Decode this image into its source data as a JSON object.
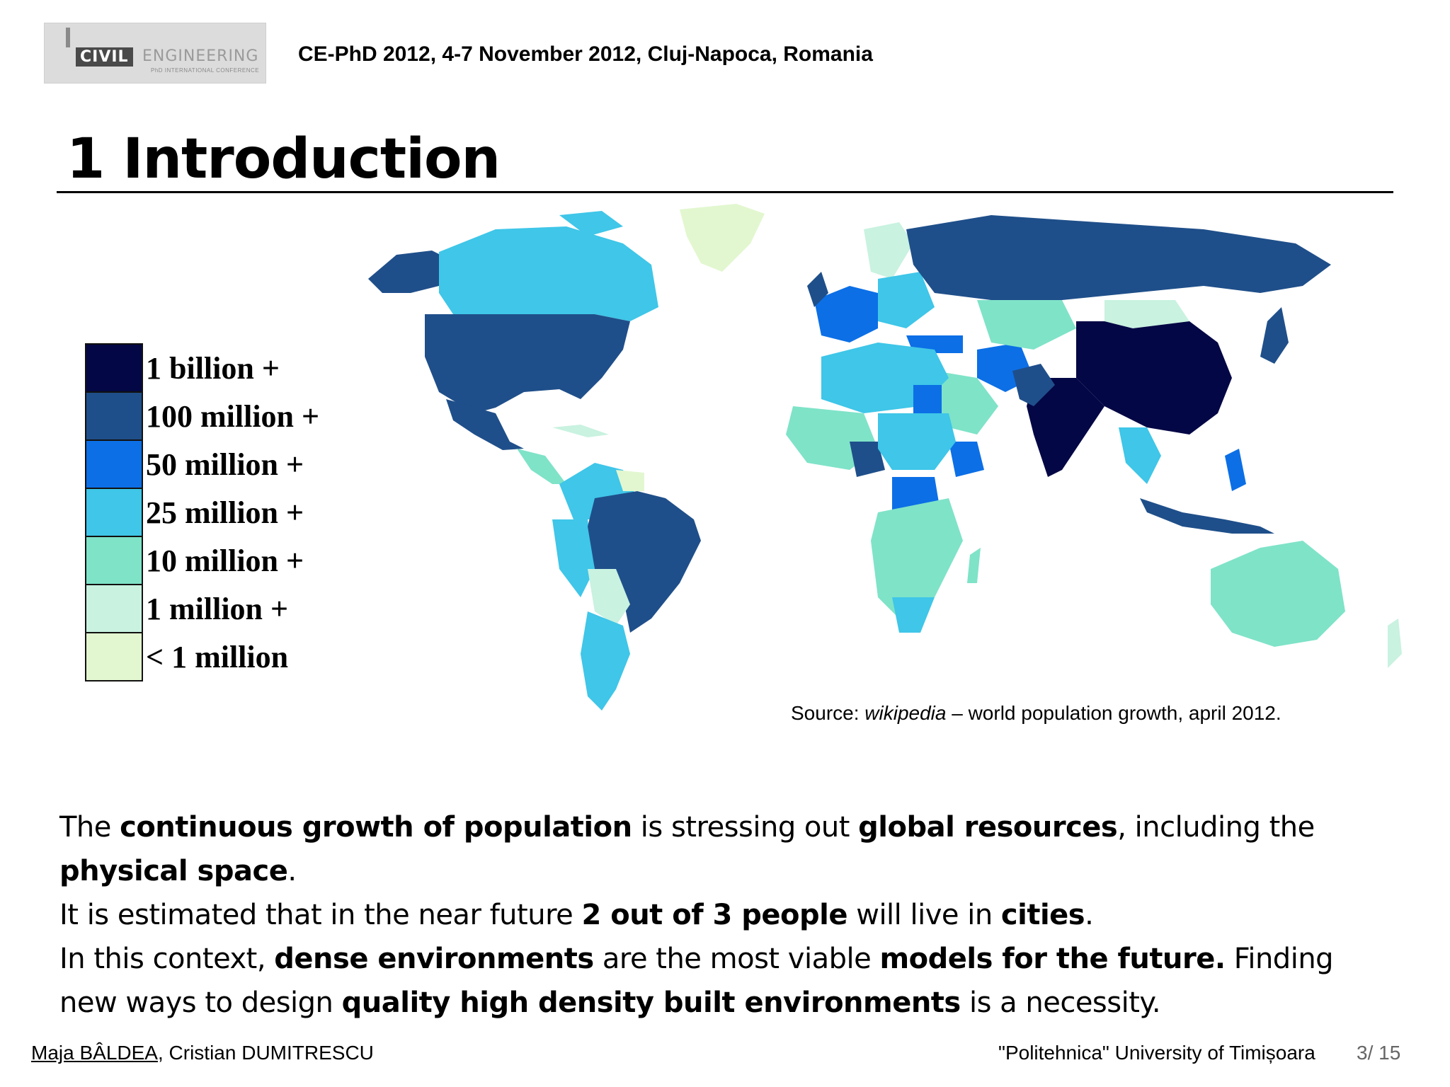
{
  "header": {
    "logo_text_civil": "CIVIL",
    "logo_text_engineering": "ENGINEERING",
    "logo_subtext": "PhD INTERNATIONAL CONFERENCE",
    "conference": "CE-PhD 2012, 4-7 November 2012, Cluj-Napoca, Romania"
  },
  "slide": {
    "title": "1 Introduction"
  },
  "legend": [
    {
      "label": "1 billion +",
      "color": "#040745"
    },
    {
      "label": "100 million +",
      "color": "#1f4f8a"
    },
    {
      "label": "50 million +",
      "color": "#0c6fe6"
    },
    {
      "label": "25 million +",
      "color": "#3fc6e8"
    },
    {
      "label": "10 million +",
      "color": "#7fe3c8"
    },
    {
      "label": "1 million +",
      "color": "#c9f2e0"
    },
    {
      "label": "< 1 million",
      "color": "#e2f7cf"
    }
  ],
  "source": {
    "prefix": "Source: ",
    "site": "wikipedia",
    "rest": " – world population growth, april 2012."
  },
  "paragraph": {
    "s1a": "The ",
    "s1b": "continuous growth of population",
    "s1c": " is stressing out ",
    "s1d": "global resources",
    "s1e": ", including the ",
    "s1f": "physical space",
    "s1g": ".",
    "s2a": "It is estimated that in the near future ",
    "s2b": "2 out of 3 people",
    "s2c": " will live in ",
    "s2d": "cities",
    "s2e": ".",
    "s3a": "In this context, ",
    "s3b": "dense environments",
    "s3c": " are the most viable ",
    "s3d": "models for the future.",
    "s3e": " Finding new ways to design ",
    "s3f": "quality high density built environments",
    "s3g": " is a necessity."
  },
  "footer": {
    "author1": "Maja BÂLDEA",
    "author_sep": ", Cristian DUMITRESCU",
    "university": "\"Politehnica\" University of Timișoara",
    "page": "3/ 15"
  }
}
